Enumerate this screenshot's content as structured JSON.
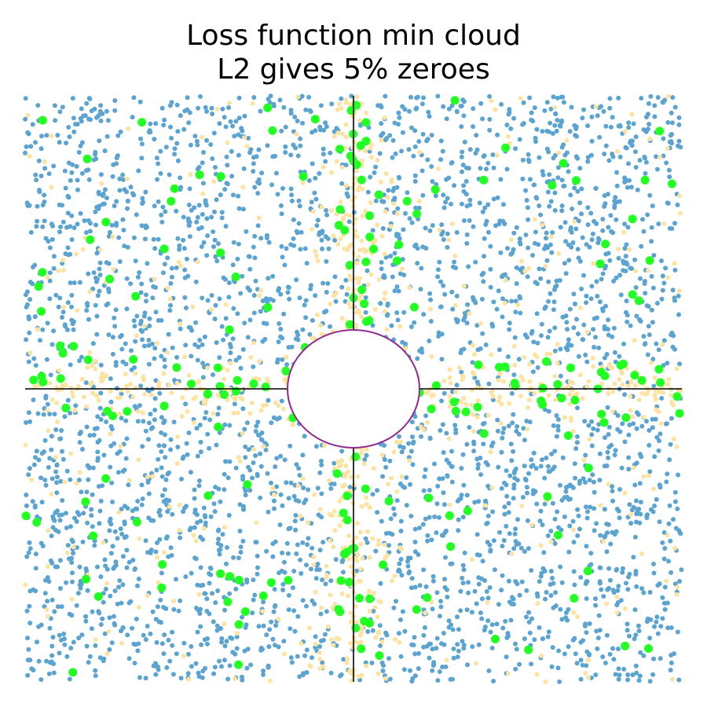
{
  "chart_data": {
    "type": "scatter",
    "title": "Loss function min cloud",
    "subtitle": "L2 gives 5% zeroes",
    "xlabel": "",
    "ylabel": "",
    "xlim": [
      -1,
      1
    ],
    "ylim": [
      -1,
      1
    ],
    "axes_visible": false,
    "grid": false,
    "legend": "none",
    "center_lines": true,
    "exclusion_ellipse": {
      "center": [
        0,
        0
      ],
      "rx": 0.2,
      "ry": 0.2
    },
    "series": [
      {
        "role": "dense cloud",
        "color": "#5ba3d0",
        "approx_count": 3300,
        "marker": "small",
        "distribution": "uniform"
      },
      {
        "role": "near-axis points",
        "color": "#fde3a1",
        "approx_count": 1000,
        "marker": "small",
        "distribution": "concentrated near axes"
      },
      {
        "role": "zero points",
        "color": "#22ff22",
        "approx_count": 220,
        "marker": "large",
        "distribution": "scattered, denser along axes"
      }
    ]
  },
  "colors": {
    "axis_line": "#000000",
    "ellipse_stroke": "#8e2b8e",
    "ellipse_fill": "#ffffff",
    "background": "#ffffff"
  }
}
